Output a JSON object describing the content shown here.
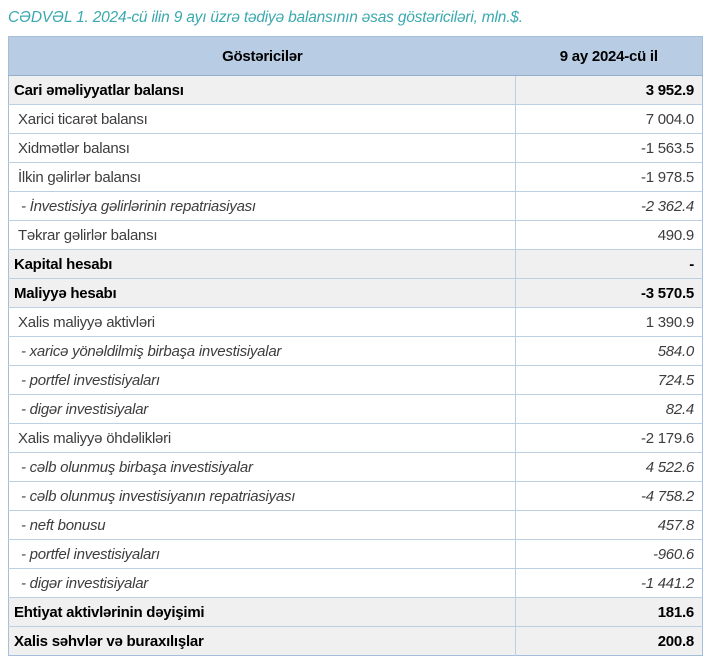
{
  "title": "CƏDVƏL 1. 2024-cü ilin 9 ayı üzrə tədiyə balansının əsas göstəriciləri, mln.$.",
  "table": {
    "columns": [
      "Göstəricilər",
      "9 ay 2024-cü il"
    ],
    "rows": [
      {
        "label": "Cari əməliyyatlar balansı",
        "value": "3 952.9",
        "style": "total"
      },
      {
        "label": "Xarici ticarət balansı",
        "value": "7 004.0",
        "style": "item"
      },
      {
        "label": "Xidmətlər balansı",
        "value": "-1 563.5",
        "style": "item"
      },
      {
        "label": "İlkin gəlirlər balansı",
        "value": "-1 978.5",
        "style": "item"
      },
      {
        "label": "- İnvestisiya gəlirlərinin repatriasiyası",
        "value": "-2 362.4",
        "style": "sub"
      },
      {
        "label": "Təkrar gəlirlər balansı",
        "value": "490.9",
        "style": "item"
      },
      {
        "label": "Kapital hesabı",
        "value": "-",
        "style": "total"
      },
      {
        "label": "Maliyyə hesabı",
        "value": "-3 570.5",
        "style": "total"
      },
      {
        "label": "Xalis maliyyə aktivləri",
        "value": "1 390.9",
        "style": "item"
      },
      {
        "label": "- xaricə yönəldilmiş birbaşa investisiyalar",
        "value": "584.0",
        "style": "sub"
      },
      {
        "label": "- portfel investisiyaları",
        "value": "724.5",
        "style": "sub"
      },
      {
        "label": "- digər investisiyalar",
        "value": "82.4",
        "style": "sub"
      },
      {
        "label": "Xalis maliyyə öhdəlikləri",
        "value": "-2 179.6",
        "style": "item"
      },
      {
        "label": "- cəlb olunmuş birbaşa investisiyalar",
        "value": "4 522.6",
        "style": "sub"
      },
      {
        "label": "- cəlb olunmuş investisiyanın repatriasiyası",
        "value": "-4 758.2",
        "style": "sub"
      },
      {
        "label": "- neft bonusu",
        "value": "457.8",
        "style": "sub"
      },
      {
        "label": "- portfel investisiyaları",
        "value": "-960.6",
        "style": "sub"
      },
      {
        "label": "- digər investisiyalar",
        "value": "-1 441.2",
        "style": "sub"
      },
      {
        "label": "Ehtiyat aktivlərinin dəyişimi",
        "value": "181.6",
        "style": "total"
      },
      {
        "label": "Xalis səhvlər və buraxılışlar",
        "value": "200.8",
        "style": "total"
      }
    ]
  },
  "colors": {
    "title_text": "#3AA9AF",
    "header_bg": "#B8CCE4",
    "total_row_bg": "#F0F0F0",
    "border": "#A3BFDB",
    "row_line": "#BCCFE3",
    "body_text": "#3D3D3D",
    "total_text": "#000000"
  }
}
